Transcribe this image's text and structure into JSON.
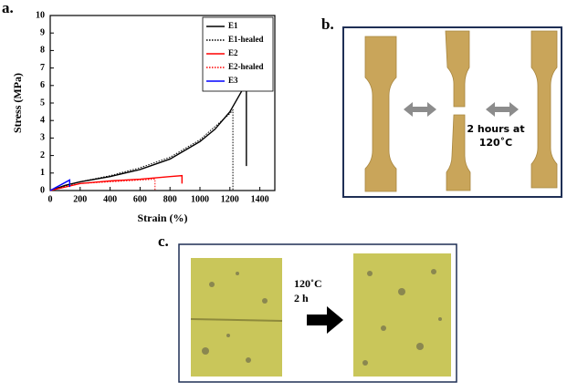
{
  "chart_data": {
    "type": "line",
    "xlabel": "Strain (%)",
    "ylabel": "Stress (MPa)",
    "xlim": [
      0,
      1500
    ],
    "xticks": [
      0,
      200,
      400,
      600,
      800,
      1000,
      1200,
      1400
    ],
    "ylim": [
      0,
      10
    ],
    "yticks": [
      0,
      1,
      2,
      3,
      4,
      5,
      6,
      7,
      8,
      9,
      10
    ],
    "grid": false,
    "legend": "upper right",
    "series": [
      {
        "name": "E1",
        "color": "#000000",
        "style": "solid",
        "x": [
          0,
          100,
          200,
          400,
          600,
          800,
          1000,
          1100,
          1200,
          1300,
          1310,
          1310
        ],
        "values": [
          0,
          0.3,
          0.5,
          0.8,
          1.2,
          1.8,
          2.8,
          3.5,
          4.5,
          6.0,
          6.2,
          1.4
        ]
      },
      {
        "name": "E1-healed",
        "color": "#000000",
        "style": "dotted",
        "x": [
          0,
          200,
          400,
          600,
          800,
          1000,
          1200,
          1220,
          1220
        ],
        "values": [
          0,
          0.5,
          0.85,
          1.3,
          1.9,
          2.9,
          4.4,
          4.6,
          0
        ]
      },
      {
        "name": "E2",
        "color": "#ff0000",
        "style": "solid",
        "x": [
          0,
          200,
          400,
          600,
          800,
          880,
          880
        ],
        "values": [
          0,
          0.4,
          0.55,
          0.65,
          0.8,
          0.85,
          0.4
        ]
      },
      {
        "name": "E2-healed",
        "color": "#ff0000",
        "style": "dotted",
        "x": [
          0,
          200,
          400,
          600,
          700,
          700
        ],
        "values": [
          0,
          0.4,
          0.5,
          0.6,
          0.65,
          0
        ]
      },
      {
        "name": "E3",
        "color": "#0000ff",
        "style": "solid",
        "x": [
          0,
          130,
          130
        ],
        "values": [
          0,
          0.6,
          0.2
        ]
      }
    ]
  },
  "panels": {
    "a": "a.",
    "b": "b.",
    "c": "c.",
    "b_text": [
      "2 hours at",
      "120˚C"
    ],
    "c_text": [
      "120˚C",
      "2 h"
    ]
  }
}
